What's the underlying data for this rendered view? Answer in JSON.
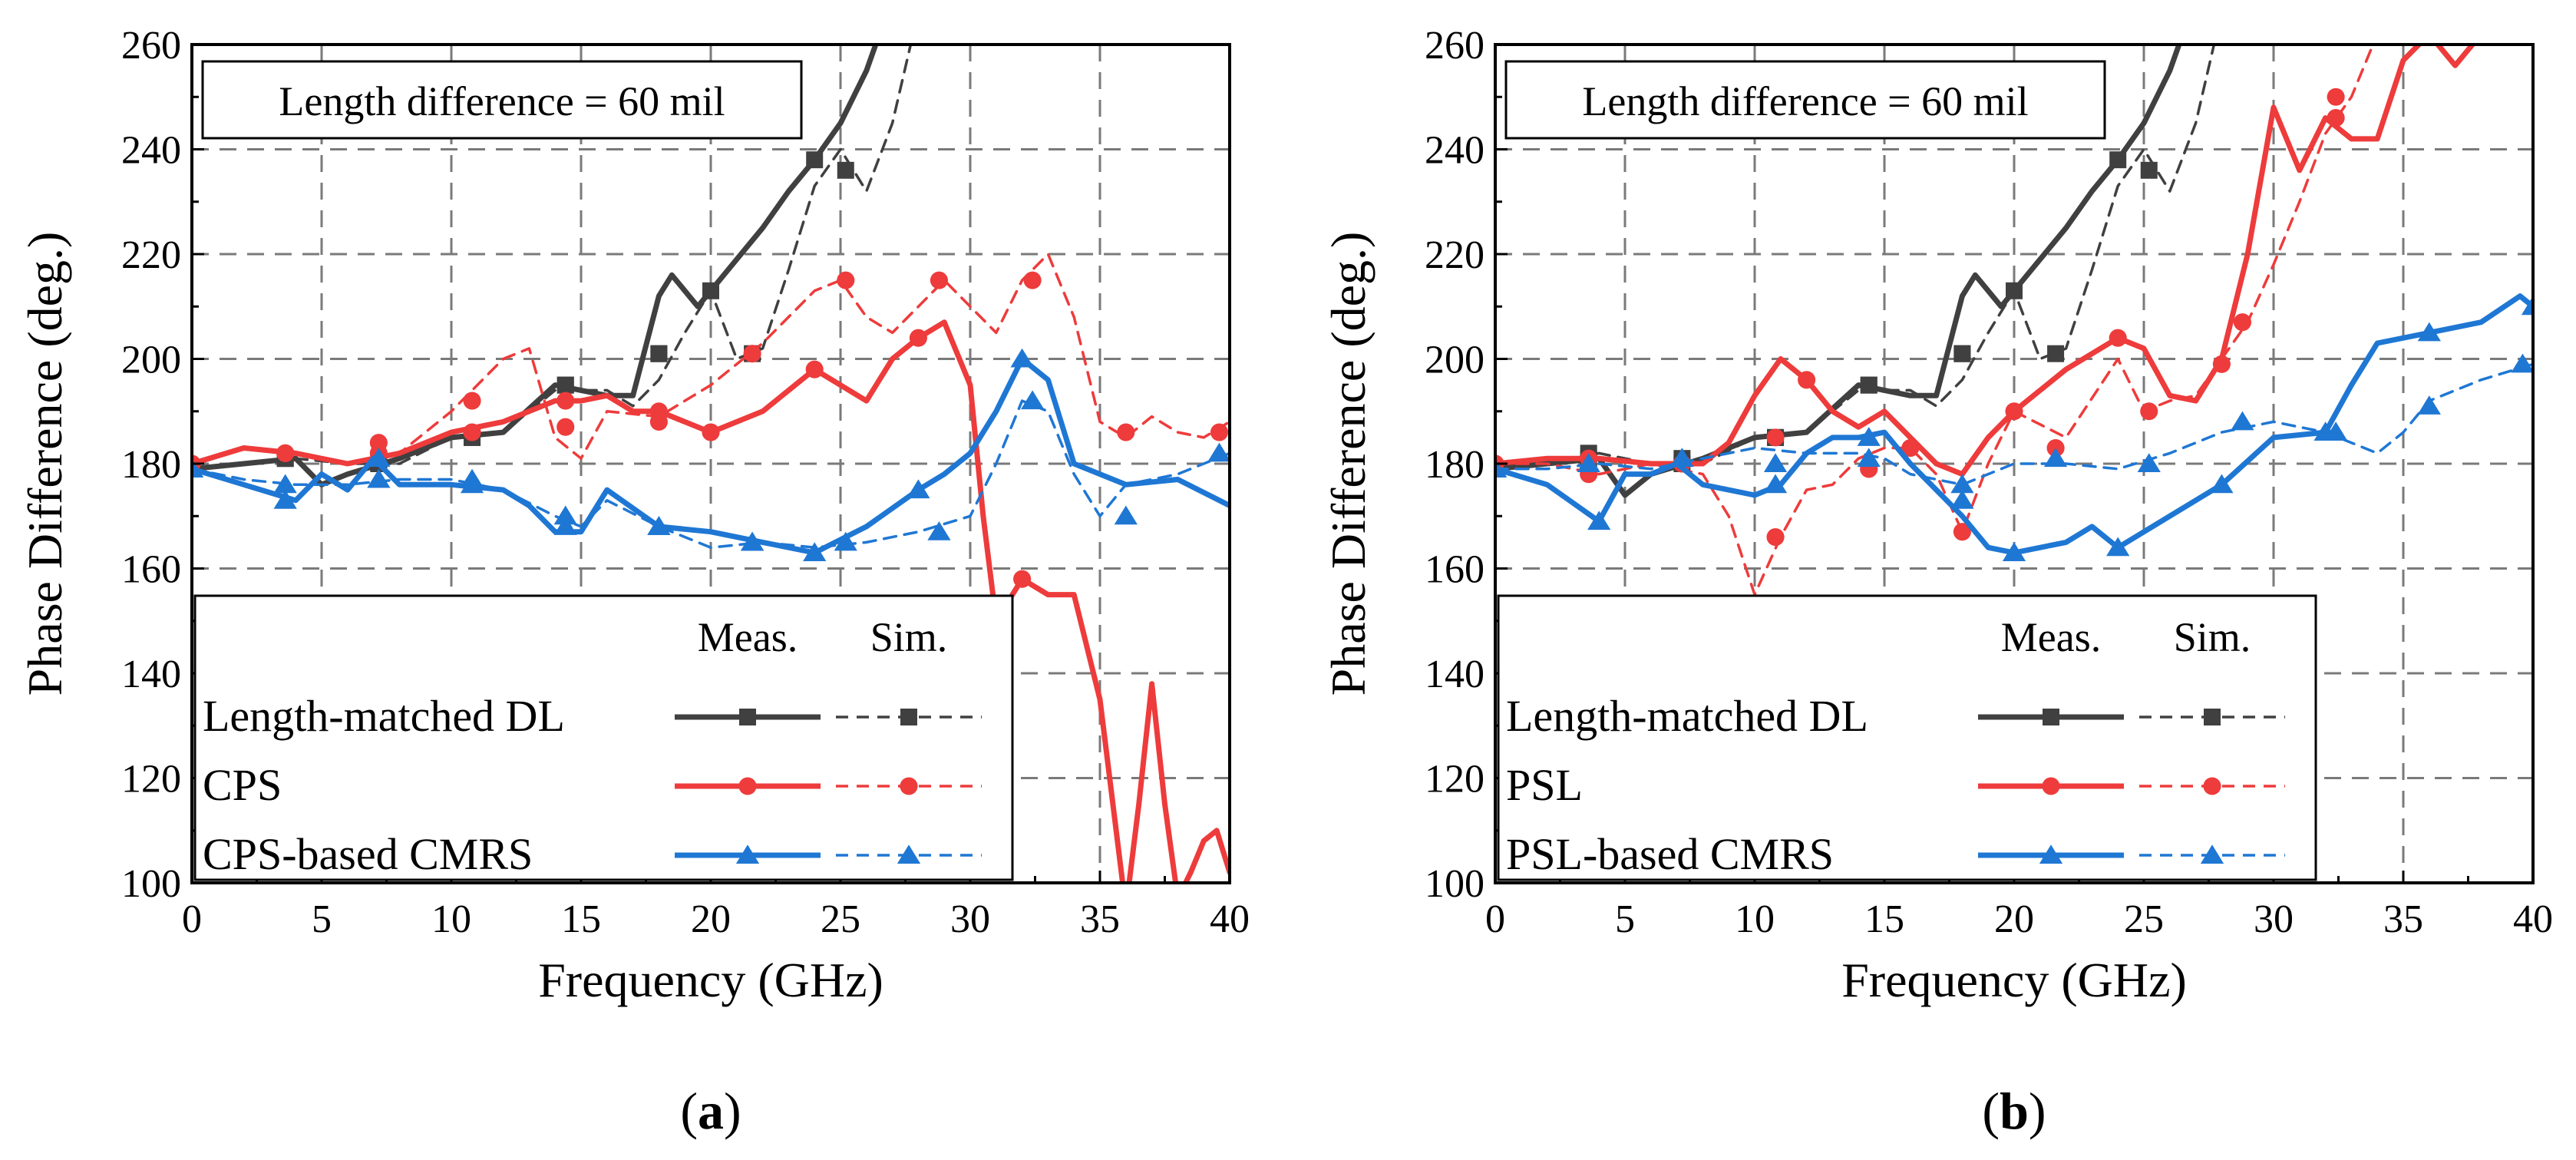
{
  "chart_data": [
    {
      "type": "line",
      "panel_label": "a",
      "annotation": "Length difference = 60 mil",
      "xlabel": "Frequency (GHz)",
      "ylabel": "Phase Difference (deg.)",
      "xlim": [
        0,
        40
      ],
      "ylim": [
        100,
        260
      ],
      "xticks": [
        0,
        5,
        10,
        15,
        20,
        25,
        30,
        35,
        40
      ],
      "yticks": [
        100,
        120,
        140,
        160,
        180,
        200,
        220,
        240,
        260
      ],
      "grid": true,
      "legend": {
        "placement": "bottom-left",
        "header_meas": "Meas.",
        "header_sim": "Sim.",
        "entries": [
          "Length-matched DL",
          "CPS",
          "CPS-based CMRS"
        ]
      },
      "series": [
        {
          "name": "Length-matched DL (Meas.)",
          "color": "#404040",
          "dash": "solid",
          "marker": "square",
          "x": [
            0,
            2,
            4,
            5,
            6,
            8,
            10,
            12,
            14,
            16,
            17,
            18,
            18.5,
            19.5,
            20,
            21,
            22,
            23,
            24,
            25,
            26,
            26.5
          ],
          "y": [
            179,
            180,
            181,
            176,
            178,
            181,
            185,
            186,
            195,
            193,
            193,
            212,
            216,
            210,
            213,
            219,
            225,
            232,
            238,
            245,
            255,
            262
          ],
          "mx": [
            0,
            3.6,
            7.2,
            10.8,
            14.4,
            18,
            20,
            24
          ],
          "my": [
            179,
            181,
            180,
            185,
            195,
            201,
            213,
            238
          ]
        },
        {
          "name": "Length-matched DL (Sim.)",
          "color": "#404040",
          "dash": "dashed",
          "marker": "square",
          "x": [
            0,
            2,
            4,
            6,
            8,
            10,
            12,
            14,
            16,
            17,
            18,
            19,
            20,
            21,
            22,
            23,
            24,
            25,
            26,
            27,
            27.8
          ],
          "y": [
            179,
            180,
            181,
            180,
            180,
            185,
            186,
            194,
            194,
            191,
            196,
            205,
            213,
            200,
            202,
            217,
            233,
            240,
            232,
            245,
            262
          ],
          "mx": [
            0,
            3.6,
            7.2,
            10.8,
            14.4,
            18,
            21.6,
            25.2
          ],
          "my": [
            179,
            181,
            180,
            185,
            195,
            201,
            201,
            236
          ]
        },
        {
          "name": "CPS (Meas.)",
          "color": "#ee3b3b",
          "dash": "solid",
          "marker": "circle",
          "x": [
            0,
            2,
            4,
            6,
            8,
            10,
            12,
            14,
            15,
            16,
            17,
            18,
            20,
            22,
            24,
            26,
            27,
            28,
            29,
            30,
            30.5,
            31,
            32,
            33,
            34,
            35,
            35.5,
            36,
            36.5,
            37,
            37.5,
            38,
            38.5,
            39,
            39.5,
            40
          ],
          "y": [
            180,
            183,
            182,
            180,
            182,
            186,
            188,
            192,
            192,
            193,
            190,
            190,
            186,
            190,
            198,
            192,
            200,
            204,
            207,
            195,
            170,
            150,
            158,
            155,
            155,
            135,
            115,
            95,
            115,
            138,
            115,
            97,
            102,
            108,
            110,
            102
          ],
          "mx": [
            0,
            3.6,
            7.2,
            10.8,
            14.4,
            18,
            20,
            24,
            28,
            32
          ],
          "my": [
            180,
            182,
            182,
            186,
            192,
            190,
            186,
            198,
            204,
            158
          ]
        },
        {
          "name": "CPS (Sim.)",
          "color": "#ee3b3b",
          "dash": "dashed",
          "marker": "circle",
          "x": [
            0,
            2,
            4,
            6,
            8,
            10,
            12,
            13,
            14,
            15,
            16,
            18,
            20,
            22,
            24,
            25,
            26,
            27,
            28,
            29,
            30,
            31,
            32,
            33,
            34,
            35,
            36,
            37,
            38,
            39,
            40
          ],
          "y": [
            180,
            183,
            182,
            180,
            182,
            190,
            200,
            202,
            185,
            181,
            190,
            189,
            195,
            203,
            213,
            215,
            208,
            205,
            210,
            215,
            210,
            205,
            215,
            220,
            208,
            188,
            185,
            189,
            186,
            185,
            188
          ],
          "mx": [
            0,
            3.6,
            7.2,
            10.8,
            14.4,
            18,
            21.6,
            25.2,
            28.8,
            32.4,
            36,
            39.6
          ],
          "my": [
            180,
            182,
            184,
            192,
            187,
            188,
            201,
            215,
            215,
            215,
            186,
            186
          ]
        },
        {
          "name": "CPS-based CMRS (Meas.)",
          "color": "#1f77d4",
          "dash": "solid",
          "marker": "triangle",
          "x": [
            0,
            2,
            4,
            5,
            6,
            7,
            8,
            10,
            12,
            13,
            14,
            15,
            16,
            18,
            20,
            22,
            24,
            26,
            28,
            29,
            30,
            31,
            32,
            33,
            34,
            36,
            38,
            40
          ],
          "y": [
            179,
            176,
            173,
            178,
            175,
            181,
            176,
            176,
            175,
            172,
            167,
            167,
            175,
            168,
            167,
            165,
            163,
            168,
            175,
            178,
            182,
            190,
            200,
            196,
            180,
            176,
            177,
            172
          ],
          "mx": [
            0,
            3.6,
            7.2,
            10.8,
            14.4,
            18,
            21.6,
            24,
            28,
            32
          ],
          "my": [
            179,
            173,
            181,
            176,
            168,
            168,
            165,
            163,
            175,
            200
          ]
        },
        {
          "name": "CPS-based CMRS (Sim.)",
          "color": "#1f77d4",
          "dash": "dashed",
          "marker": "triangle",
          "x": [
            0,
            2,
            4,
            6,
            8,
            10,
            12,
            14,
            15,
            16,
            18,
            20,
            22,
            24,
            26,
            28,
            30,
            31,
            32,
            33,
            34,
            35,
            36,
            38,
            40
          ],
          "y": [
            179,
            177,
            176,
            176,
            177,
            177,
            175,
            170,
            168,
            173,
            168,
            164,
            165,
            164,
            165,
            167,
            170,
            180,
            192,
            190,
            178,
            170,
            176,
            178,
            182
          ],
          "mx": [
            0,
            3.6,
            7.2,
            10.8,
            14.4,
            18,
            21.6,
            25.2,
            28.8,
            32.4,
            36,
            39.6
          ],
          "my": [
            179,
            176,
            177,
            177,
            170,
            168,
            165,
            165,
            167,
            192,
            170,
            182
          ]
        }
      ]
    },
    {
      "type": "line",
      "panel_label": "b",
      "annotation": "Length difference = 60 mil",
      "xlabel": "Frequency (GHz)",
      "ylabel": "Phase Difference (deg.)",
      "xlim": [
        0,
        40
      ],
      "ylim": [
        100,
        260
      ],
      "xticks": [
        0,
        5,
        10,
        15,
        20,
        25,
        30,
        35,
        40
      ],
      "yticks": [
        100,
        120,
        140,
        160,
        180,
        200,
        220,
        240,
        260
      ],
      "grid": true,
      "legend": {
        "placement": "bottom-left",
        "header_meas": "Meas.",
        "header_sim": "Sim.",
        "entries": [
          "Length-matched DL",
          "PSL",
          "PSL-based CMRS"
        ]
      },
      "series": [
        {
          "name": "Length-matched DL (Meas.)",
          "color": "#404040",
          "dash": "solid",
          "marker": "square",
          "x": [
            0,
            2,
            4,
            5,
            6,
            8,
            10,
            12,
            14,
            16,
            17,
            18,
            18.5,
            19.5,
            20,
            21,
            22,
            23,
            24,
            25,
            26,
            26.5
          ],
          "y": [
            179,
            180,
            181,
            174,
            178,
            181,
            185,
            186,
            195,
            193,
            193,
            212,
            216,
            210,
            213,
            219,
            225,
            232,
            238,
            245,
            255,
            262
          ],
          "mx": [
            0,
            3.6,
            7.2,
            10.8,
            14.4,
            18,
            20,
            24
          ],
          "my": [
            179,
            181,
            180,
            185,
            195,
            201,
            213,
            238
          ]
        },
        {
          "name": "Length-matched DL (Sim.)",
          "color": "#404040",
          "dash": "dashed",
          "marker": "square",
          "x": [
            0,
            2,
            4,
            6,
            8,
            10,
            12,
            14,
            16,
            17,
            18,
            19,
            20,
            21,
            22,
            23,
            24,
            25,
            26,
            27,
            27.8
          ],
          "y": [
            179,
            180,
            182,
            180,
            180,
            185,
            186,
            194,
            194,
            191,
            196,
            205,
            213,
            200,
            202,
            217,
            233,
            240,
            232,
            245,
            262
          ],
          "mx": [
            0,
            3.6,
            7.2,
            10.8,
            14.4,
            18,
            21.6,
            25.2
          ],
          "my": [
            179,
            182,
            181,
            185,
            195,
            201,
            201,
            236
          ]
        },
        {
          "name": "PSL (Meas.)",
          "color": "#ee3b3b",
          "dash": "solid",
          "marker": "circle",
          "x": [
            0,
            2,
            4,
            6,
            8,
            9,
            10,
            11,
            12,
            13,
            14,
            15,
            16,
            17,
            18,
            19,
            20,
            22,
            24,
            25,
            26,
            27,
            28,
            29,
            30,
            31,
            32,
            33,
            34,
            35,
            36,
            37,
            38,
            38.5
          ],
          "y": [
            180,
            181,
            181,
            180,
            180,
            184,
            193,
            200,
            196,
            190,
            187,
            190,
            185,
            180,
            178,
            185,
            190,
            198,
            204,
            202,
            193,
            192,
            200,
            220,
            248,
            236,
            246,
            242,
            242,
            257,
            262,
            256,
            262,
            264
          ],
          "mx": [
            0,
            3.6,
            7.2,
            10.8,
            12,
            14.4,
            16,
            20,
            24,
            28,
            32.4
          ],
          "my": [
            180,
            181,
            180,
            185,
            196,
            179,
            183,
            190,
            204,
            199,
            246
          ]
        },
        {
          "name": "PSL (Sim.)",
          "color": "#ee3b3b",
          "dash": "dashed",
          "marker": "circle",
          "x": [
            0,
            2,
            4,
            6,
            8,
            9,
            10,
            11,
            12,
            13,
            14,
            15,
            16,
            17,
            18,
            19,
            20,
            22,
            24,
            25,
            26,
            27,
            28,
            29,
            30,
            31,
            32,
            33,
            34,
            35
          ],
          "y": [
            180,
            180,
            178,
            180,
            178,
            170,
            155,
            166,
            175,
            176,
            181,
            183,
            183,
            178,
            167,
            180,
            190,
            185,
            200,
            190,
            192,
            193,
            200,
            207,
            218,
            230,
            243,
            250,
            262,
            268
          ],
          "mx": [
            0,
            3.6,
            7.2,
            10.8,
            14.4,
            18,
            21.6,
            25.2,
            28.8,
            32.4
          ],
          "my": [
            180,
            178,
            180,
            166,
            179,
            167,
            183,
            190,
            207,
            250
          ]
        },
        {
          "name": "PSL-based CMRS (Meas.)",
          "color": "#1f77d4",
          "dash": "solid",
          "marker": "triangle",
          "x": [
            0,
            2,
            4,
            5,
            6,
            7,
            8,
            10,
            11,
            12,
            13,
            14,
            15,
            16,
            17,
            18,
            19,
            20,
            22,
            23,
            24,
            26,
            28,
            30,
            32,
            33,
            34,
            36,
            38,
            39.5,
            40
          ],
          "y": [
            179,
            176,
            169,
            178,
            178,
            180,
            176,
            174,
            176,
            182,
            185,
            185,
            186,
            180,
            175,
            170,
            164,
            163,
            165,
            168,
            164,
            170,
            176,
            185,
            186,
            195,
            203,
            205,
            207,
            212,
            210
          ],
          "mx": [
            0,
            4,
            7.2,
            10.8,
            14.4,
            18,
            20,
            24,
            28,
            32,
            36,
            40
          ],
          "my": [
            179,
            169,
            181,
            176,
            185,
            173,
            163,
            164,
            176,
            186,
            205,
            210
          ]
        },
        {
          "name": "PSL-based CMRS (Sim.)",
          "color": "#1f77d4",
          "dash": "dashed",
          "marker": "triangle",
          "x": [
            0,
            2,
            4,
            6,
            8,
            10,
            12,
            14,
            15,
            16,
            18,
            20,
            22,
            24,
            26,
            28,
            30,
            32,
            33,
            34,
            35,
            36,
            38,
            40
          ],
          "y": [
            179,
            179,
            180,
            179,
            181,
            183,
            182,
            182,
            181,
            178,
            176,
            180,
            180,
            179,
            182,
            186,
            188,
            186,
            184,
            182,
            186,
            192,
            196,
            199
          ],
          "mx": [
            0,
            3.6,
            7.2,
            10.8,
            14.4,
            18,
            21.6,
            25.2,
            28.8,
            32.4,
            36,
            39.6
          ],
          "my": [
            179,
            180,
            181,
            180,
            181,
            176,
            181,
            180,
            188,
            186,
            191,
            199
          ]
        }
      ]
    }
  ]
}
